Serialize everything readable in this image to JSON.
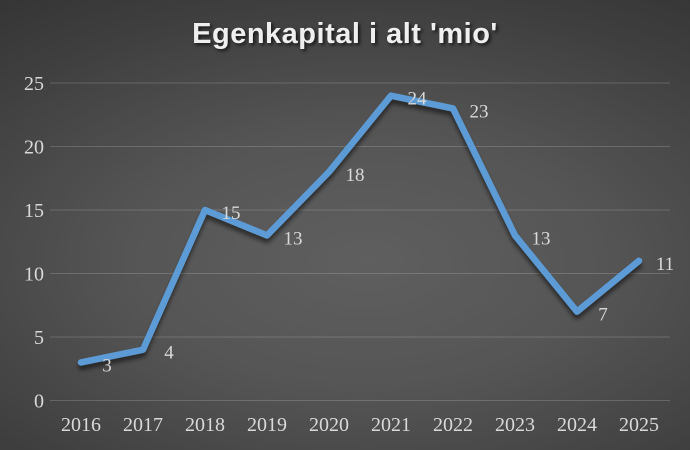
{
  "chart_data": {
    "type": "line",
    "title": "Egenkapital i alt 'mio'",
    "categories": [
      "2016",
      "2017",
      "2018",
      "2019",
      "2020",
      "2021",
      "2022",
      "2023",
      "2024",
      "2025"
    ],
    "values": [
      3,
      4,
      15,
      13,
      18,
      24,
      23,
      13,
      7,
      11
    ],
    "xlabel": "",
    "ylabel": "",
    "ylim": [
      0,
      25
    ],
    "ytick_interval": 5,
    "yticks": [
      "0",
      "5",
      "10",
      "15",
      "20",
      "25"
    ],
    "grid": "horizontal",
    "legend": "none",
    "show_data_labels": true,
    "data_label_position": "right",
    "line_color": "#5B9BD5",
    "text_color": "#d9d9d9",
    "title_color": "#efefef",
    "gridline_color": "rgba(255,255,255,0.17)",
    "background_center_color": "#5f5f5f",
    "background_edge_color": "#272727"
  }
}
